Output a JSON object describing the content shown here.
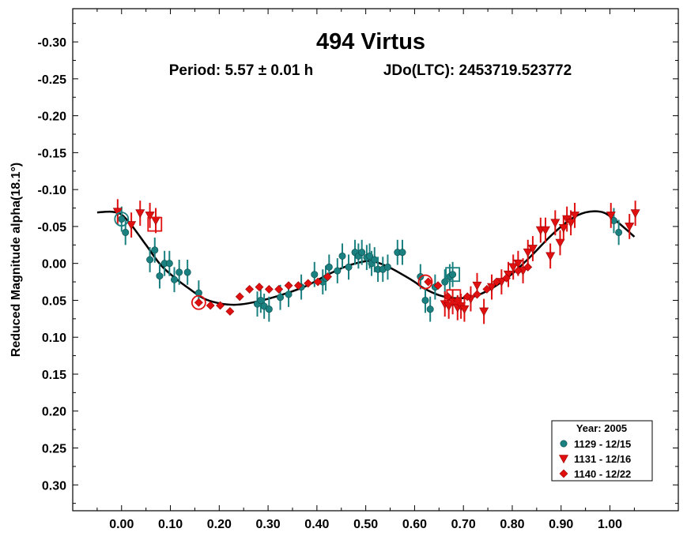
{
  "chart_data": {
    "type": "scatter",
    "title": "494 Virtus",
    "subtitle_period": "Period: 5.57 ± 0.01 h",
    "subtitle_epoch": "JDo(LTC): 2453719.523772",
    "ylabel": "Reduced Magnitude alpha(18.1°)",
    "xlabel": "",
    "xlim": [
      -0.1,
      1.14
    ],
    "ylim": [
      -0.345,
      0.335
    ],
    "y_inverted": true,
    "grid": false,
    "legend_position": "bottom-right",
    "x_ticks": [
      "0.00",
      "0.10",
      "0.20",
      "0.30",
      "0.40",
      "0.50",
      "0.60",
      "0.70",
      "0.80",
      "0.90",
      "1.00"
    ],
    "y_ticks": [
      "-0.30",
      "-0.25",
      "-0.20",
      "-0.15",
      "-0.10",
      "-0.05",
      "0.00",
      "0.05",
      "0.10",
      "0.15",
      "0.20",
      "0.25",
      "0.30"
    ],
    "legend_title": "Year: 2005",
    "colors": {
      "fit": "#000000",
      "teal": "#1a8080",
      "red": "#e01010"
    },
    "series": [
      {
        "name": "1129 - 12/15",
        "marker": "circle",
        "color": "#1a8080",
        "error": 0.017,
        "x": [
          0.0,
          0.008,
          0.058,
          0.068,
          0.078,
          0.088,
          0.098,
          0.108,
          0.118,
          0.135,
          0.158,
          0.278,
          0.285,
          0.292,
          0.302,
          0.325,
          0.342,
          0.368,
          0.395,
          0.412,
          0.418,
          0.425,
          0.442,
          0.452,
          0.465,
          0.478,
          0.485,
          0.492,
          0.502,
          0.508,
          0.512,
          0.518,
          0.525,
          0.535,
          0.545,
          0.565,
          0.575,
          0.612,
          0.622,
          0.632,
          0.642,
          0.662,
          0.672,
          0.678,
          1.008,
          1.018
        ],
        "y": [
          -0.06,
          -0.042,
          -0.005,
          -0.018,
          0.017,
          0.0,
          0.0,
          0.022,
          0.012,
          0.012,
          0.04,
          0.055,
          0.05,
          0.058,
          0.062,
          0.046,
          0.042,
          0.032,
          0.015,
          0.025,
          0.02,
          0.005,
          0.01,
          -0.01,
          0.005,
          -0.015,
          -0.01,
          -0.015,
          -0.008,
          -0.01,
          0.0,
          -0.005,
          0.008,
          0.008,
          0.005,
          -0.015,
          -0.015,
          0.018,
          0.05,
          0.062,
          0.032,
          0.025,
          0.018,
          0.015,
          -0.058,
          -0.042
        ]
      },
      {
        "name": "1131 - 12/16",
        "marker": "triangle-down",
        "color": "#e01010",
        "error": 0.017,
        "x": [
          -0.008,
          0.02,
          0.038,
          0.058,
          0.07,
          0.662,
          0.67,
          0.678,
          0.688,
          0.695,
          0.702,
          0.715,
          0.728,
          0.742,
          0.758,
          0.778,
          0.792,
          0.802,
          0.812,
          0.822,
          0.832,
          0.842,
          0.858,
          0.868,
          0.878,
          0.888,
          0.898,
          0.905,
          0.912,
          0.92,
          0.928,
          1.002,
          1.04,
          1.052
        ],
        "y": [
          -0.07,
          -0.052,
          -0.068,
          -0.065,
          -0.058,
          0.055,
          0.058,
          0.052,
          0.06,
          0.058,
          0.062,
          0.048,
          0.03,
          0.065,
          0.032,
          0.025,
          0.015,
          0.005,
          0.0,
          0.01,
          -0.015,
          -0.02,
          -0.045,
          -0.045,
          -0.01,
          -0.055,
          -0.028,
          -0.048,
          -0.06,
          -0.055,
          -0.065,
          -0.065,
          -0.05,
          -0.068
        ]
      },
      {
        "name": "1140 - 12/22",
        "marker": "diamond",
        "color": "#e01010",
        "error": 0.0,
        "x": [
          0.158,
          0.182,
          0.202,
          0.222,
          0.242,
          0.262,
          0.282,
          0.302,
          0.322,
          0.342,
          0.362,
          0.382,
          0.402,
          0.422,
          0.628,
          0.648,
          0.668,
          0.688,
          0.708,
          0.728,
          0.748,
          0.768,
          0.788,
          0.812,
          0.832
        ],
        "y": [
          0.053,
          0.057,
          0.057,
          0.065,
          0.045,
          0.035,
          0.032,
          0.035,
          0.035,
          0.03,
          0.03,
          0.027,
          0.025,
          0.018,
          0.025,
          0.03,
          0.045,
          0.05,
          0.045,
          0.042,
          0.035,
          0.025,
          0.02,
          0.01,
          0.005
        ]
      }
    ],
    "highlights": [
      {
        "marker": "circle-open",
        "color": "#1a8080",
        "x": 0.0,
        "y": -0.06
      },
      {
        "marker": "square-open",
        "color": "#e01010",
        "x": 0.068,
        "y": -0.053
      },
      {
        "marker": "circle-open",
        "color": "#e01010",
        "x": 0.158,
        "y": 0.053
      },
      {
        "marker": "circle-open",
        "color": "#e01010",
        "x": 0.622,
        "y": 0.025
      },
      {
        "marker": "square-open",
        "color": "#1a8080",
        "x": 0.678,
        "y": 0.015
      },
      {
        "marker": "square-open",
        "color": "#e01010",
        "x": 0.68,
        "y": 0.045
      }
    ],
    "fit_curve": {
      "x": [
        -0.05,
        -0.02,
        0.0,
        0.02,
        0.05,
        0.08,
        0.11,
        0.14,
        0.17,
        0.2,
        0.23,
        0.26,
        0.3,
        0.34,
        0.38,
        0.42,
        0.46,
        0.5,
        0.52,
        0.55,
        0.58,
        0.6,
        0.62,
        0.65,
        0.68,
        0.72,
        0.76,
        0.8,
        0.84,
        0.88,
        0.92,
        0.95,
        0.98,
        1.0,
        1.03,
        1.05
      ],
      "y": [
        -0.069,
        -0.07,
        -0.066,
        -0.052,
        -0.025,
        0.002,
        0.02,
        0.035,
        0.048,
        0.054,
        0.056,
        0.054,
        0.048,
        0.04,
        0.03,
        0.016,
        0.004,
        -0.003,
        -0.002,
        0.006,
        0.017,
        0.025,
        0.034,
        0.043,
        0.047,
        0.045,
        0.033,
        0.014,
        -0.011,
        -0.038,
        -0.06,
        -0.069,
        -0.07,
        -0.064,
        -0.048,
        -0.036
      ]
    }
  }
}
